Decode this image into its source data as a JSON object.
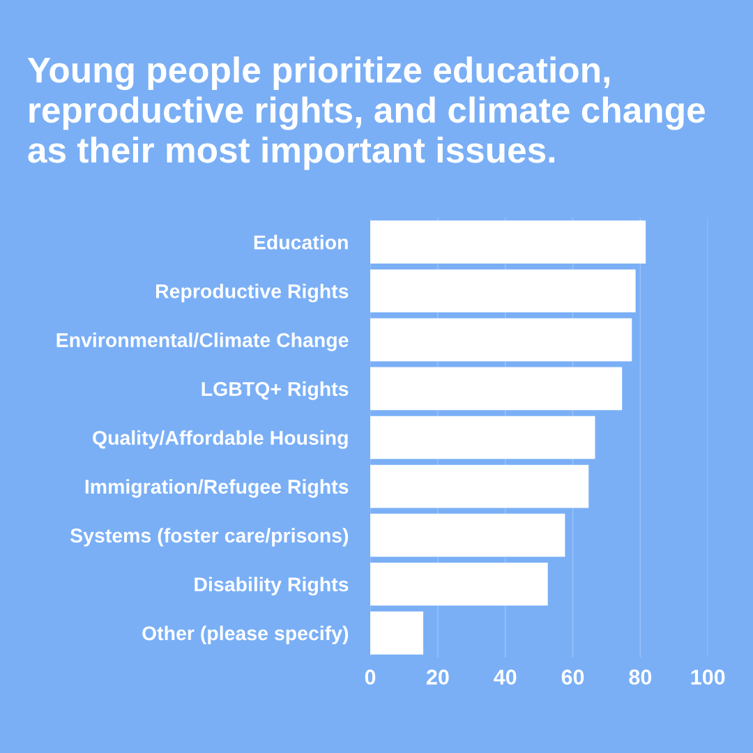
{
  "chart_data": {
    "type": "bar",
    "orientation": "horizontal",
    "title": "Young people prioritize education, reproductive rights, and climate change as their most important issues.",
    "categories": [
      "Education",
      "Reproductive Rights",
      "Environmental/Climate Change",
      "LGBTQ+ Rights",
      "Quality/Affordable Housing",
      "Immigration/Refugee Rights",
      "Systems (foster care/prisons)",
      "Disability Rights",
      "Other (please specify)"
    ],
    "values": [
      81.6,
      78.6,
      77.5,
      74.6,
      66.6,
      64.7,
      57.7,
      52.6,
      15.7
    ],
    "color": "#ffffff",
    "xlim": [
      0,
      100
    ],
    "xticks": [
      0,
      20,
      40,
      60,
      80,
      100
    ],
    "grid": "x"
  }
}
